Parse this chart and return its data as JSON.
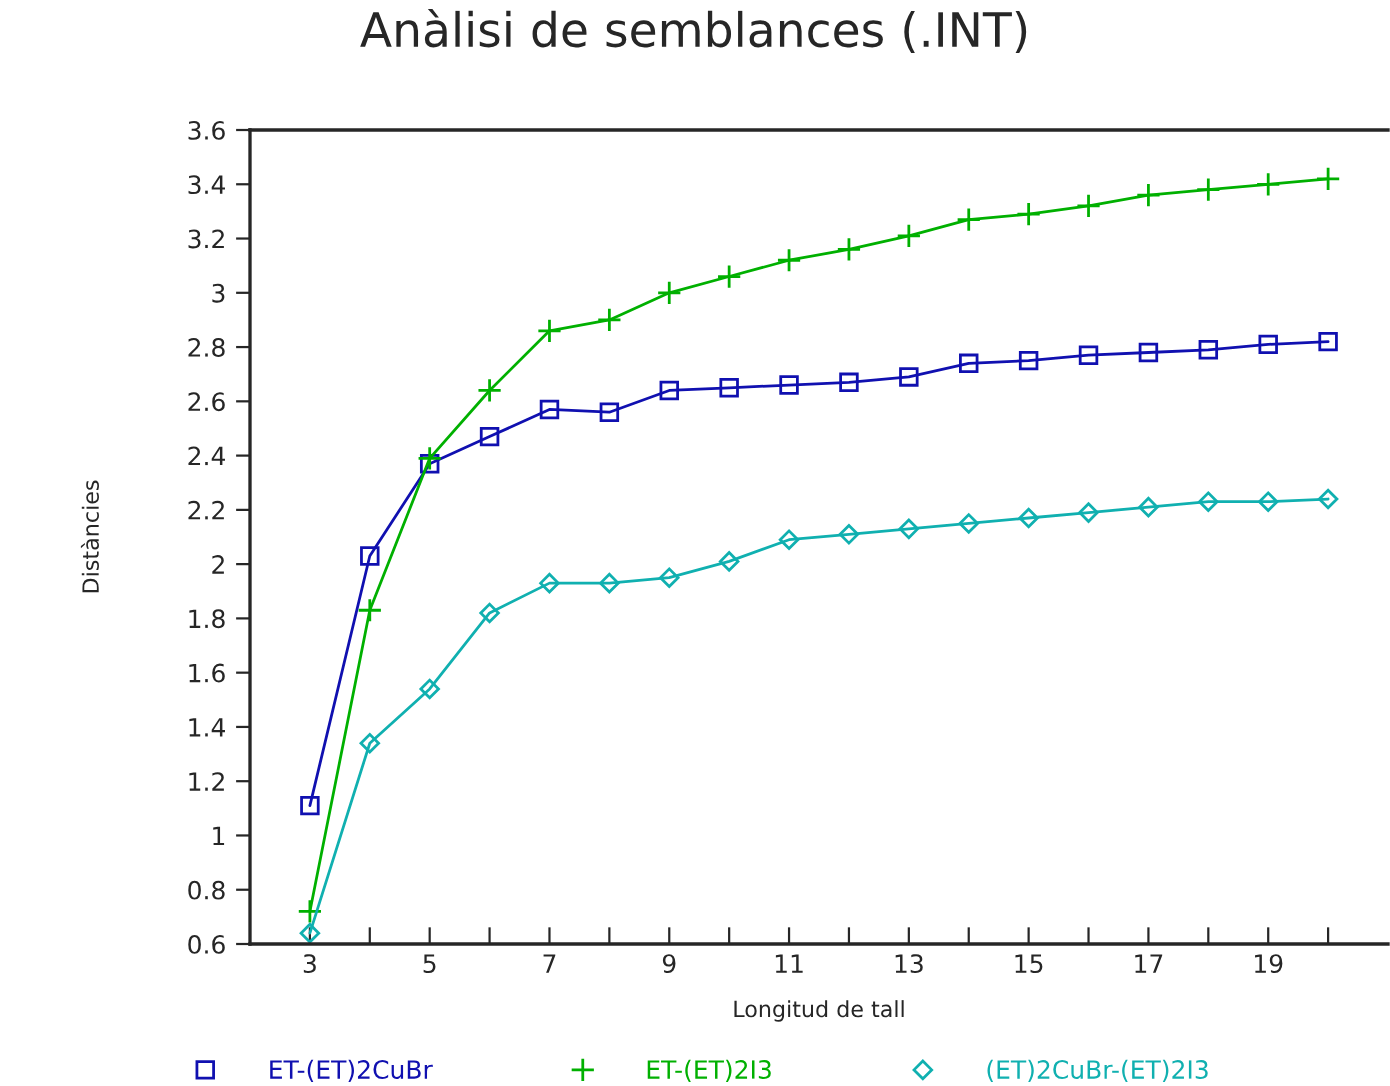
{
  "chart_data": {
    "type": "line",
    "title": "Anàlisi de semblances (.INT)",
    "xlabel": "Longitud de tall",
    "ylabel": "Distàncies",
    "x": [
      3,
      4,
      5,
      6,
      7,
      8,
      9,
      10,
      11,
      12,
      13,
      14,
      15,
      16,
      17,
      18,
      19,
      20
    ],
    "series": [
      {
        "name": "ET-(ET)2CuBr",
        "color": "#1010b0",
        "marker": "square",
        "values": [
          1.11,
          2.03,
          2.37,
          2.47,
          2.57,
          2.56,
          2.64,
          2.65,
          2.66,
          2.67,
          2.69,
          2.74,
          2.75,
          2.77,
          2.78,
          2.79,
          2.81,
          2.82
        ]
      },
      {
        "name": "ET-(ET)2I3",
        "color": "#00b000",
        "marker": "cross",
        "values": [
          0.72,
          1.83,
          2.39,
          2.64,
          2.86,
          2.9,
          3.0,
          3.06,
          3.12,
          3.16,
          3.21,
          3.27,
          3.29,
          3.32,
          3.36,
          3.38,
          3.4,
          3.42
        ]
      },
      {
        "name": "(ET)2CuBr-(ET)2I3",
        "color": "#10b0b0",
        "marker": "diamond",
        "values": [
          0.64,
          1.34,
          1.54,
          1.82,
          1.93,
          1.93,
          1.95,
          2.01,
          2.09,
          2.11,
          2.13,
          2.15,
          2.17,
          2.19,
          2.21,
          2.23,
          2.23,
          2.24
        ]
      }
    ],
    "xlim": [
      2,
      21
    ],
    "xticks": [
      3,
      {
        "value": 4,
        "label": null
      },
      5,
      {
        "value": 6,
        "label": null
      },
      7,
      {
        "value": 8,
        "label": null
      },
      9,
      {
        "value": 10,
        "label": null
      },
      11,
      {
        "value": 12,
        "label": null
      },
      13,
      {
        "value": 14,
        "label": null
      },
      15,
      {
        "value": 16,
        "label": null
      },
      17,
      {
        "value": 18,
        "label": null
      },
      19,
      {
        "value": 20,
        "label": null
      }
    ],
    "ylim": [
      0.6,
      3.6
    ],
    "yticks": [
      0.6,
      0.8,
      1,
      1.2,
      1.4,
      1.6,
      1.8,
      2,
      2.2,
      2.4,
      2.6,
      2.8,
      3,
      3.2,
      3.4,
      3.6
    ],
    "grid": false,
    "legend": "bottom",
    "line_style": "solid"
  }
}
